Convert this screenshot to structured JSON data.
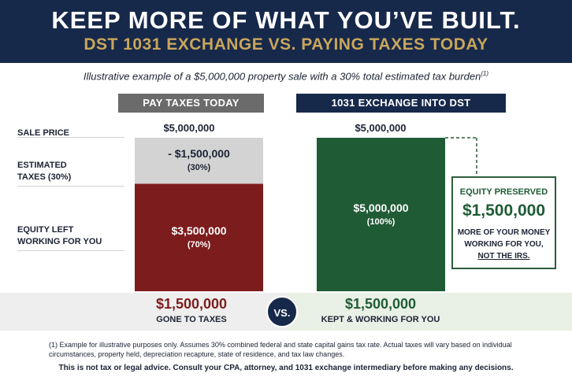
{
  "header": {
    "title": "KEEP MORE OF WHAT YOU’VE BUILT.",
    "subtitle": "DST 1031 EXCHANGE VS. PAYING TAXES TODAY"
  },
  "intro": {
    "text": "Illustrative example of a $5,000,000 property sale with a 30% total estimated tax burden",
    "note_marker": "(1)"
  },
  "columns": {
    "left_title": "PAY TAXES TODAY",
    "right_title": "1031 EXCHANGE INTO DST"
  },
  "row_labels": {
    "sale_price": "SALE PRICE",
    "taxes_line1": "ESTIMATED",
    "taxes_line2": "TAXES (30%)",
    "equity_line1": "EQUITY LEFT",
    "equity_line2": "WORKING FOR YOU"
  },
  "chart_data": {
    "type": "bar",
    "stacked": true,
    "categories": [
      "PAY TAXES TODAY",
      "1031 EXCHANGE INTO DST"
    ],
    "ylim": [
      0,
      5000000
    ],
    "sale_price_labels": [
      "$5,000,000",
      "$5,000,000"
    ],
    "series": [
      {
        "name": "EQUITY LEFT WORKING FOR YOU",
        "values": [
          3500000,
          5000000
        ],
        "colors": [
          "#7d1c1c",
          "#1f5c35"
        ],
        "labels": [
          "$3,500,000",
          "$5,000,000"
        ],
        "pct_labels": [
          "(70%)",
          "(100%)"
        ]
      },
      {
        "name": "ESTIMATED TAXES (30%)",
        "values": [
          1500000,
          0
        ],
        "colors": [
          "#d3d3d3",
          "#d3d3d3"
        ],
        "labels": [
          "- $1,500,000",
          ""
        ],
        "pct_labels": [
          "(30%)",
          ""
        ]
      }
    ]
  },
  "callout": {
    "title": "EQUITY PRESERVED",
    "amount": "$1,500,000",
    "line1": "MORE OF YOUR MONEY",
    "line2": "WORKING FOR YOU,",
    "line3": "NOT THE IRS."
  },
  "comparison": {
    "left_amount": "$1,500,000",
    "left_caption": "GONE TO TAXES",
    "left_color": "#7d1c1c",
    "vs_label": "VS.",
    "right_amount": "$1,500,000",
    "right_caption": "KEPT & WORKING FOR YOU",
    "right_color": "#1f5c35"
  },
  "footnote": "(1) Example for illustrative purposes only. Assumes 30% combined federal and state capital gains tax rate. Actual taxes will vary based on individual circumstances, property held, depreciation recapture, state of residence, and tax law changes.",
  "disclaimer": "This is not tax or legal advice. Consult your CPA, attorney, and 1031 exchange intermediary before making any decisions."
}
